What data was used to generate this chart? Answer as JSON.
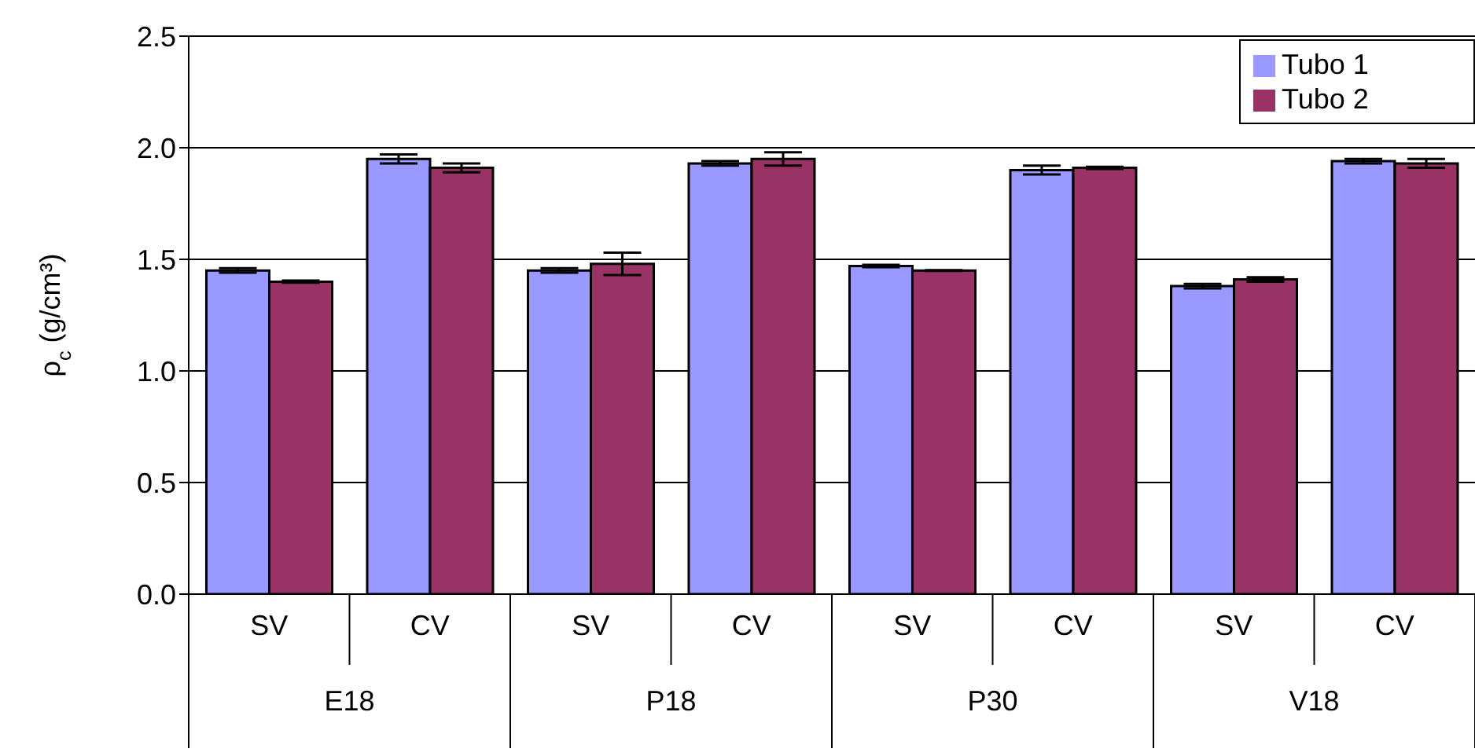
{
  "chart_data": {
    "type": "bar",
    "ylabel": "ρ$_{c}$ (g/cm³)",
    "categories": [
      "SV",
      "CV",
      "SV",
      "CV",
      "SV",
      "CV",
      "SV",
      "CV"
    ],
    "annotations": [
      "E18",
      "P18",
      "P30",
      "V18"
    ],
    "series": [
      {
        "name": "Tubo 1",
        "color": "#9999ff",
        "values": [
          1.45,
          1.95,
          1.45,
          1.93,
          1.47,
          1.9,
          1.38,
          1.94
        ],
        "errors": [
          0.01,
          0.02,
          0.01,
          0.01,
          0.005,
          0.02,
          0.01,
          0.01
        ]
      },
      {
        "name": "Tubo 2",
        "color": "#993366",
        "values": [
          1.4,
          1.91,
          1.48,
          1.95,
          1.45,
          1.91,
          1.41,
          1.93
        ],
        "errors": [
          0.005,
          0.02,
          0.05,
          0.03,
          0.002,
          0.005,
          0.01,
          0.02
        ]
      }
    ],
    "ylim": [
      0,
      2.5
    ],
    "yticks": [
      {
        "value": 0,
        "label": "0.0"
      },
      {
        "value": 0.5,
        "label": "0.5"
      },
      {
        "value": 1,
        "label": "1.0"
      },
      {
        "value": 1.5,
        "label": "1.5"
      },
      {
        "value": 2,
        "label": "2.0"
      },
      {
        "value": 2.5,
        "label": "2.5"
      }
    ],
    "grid": "y",
    "legend": "top right"
  }
}
